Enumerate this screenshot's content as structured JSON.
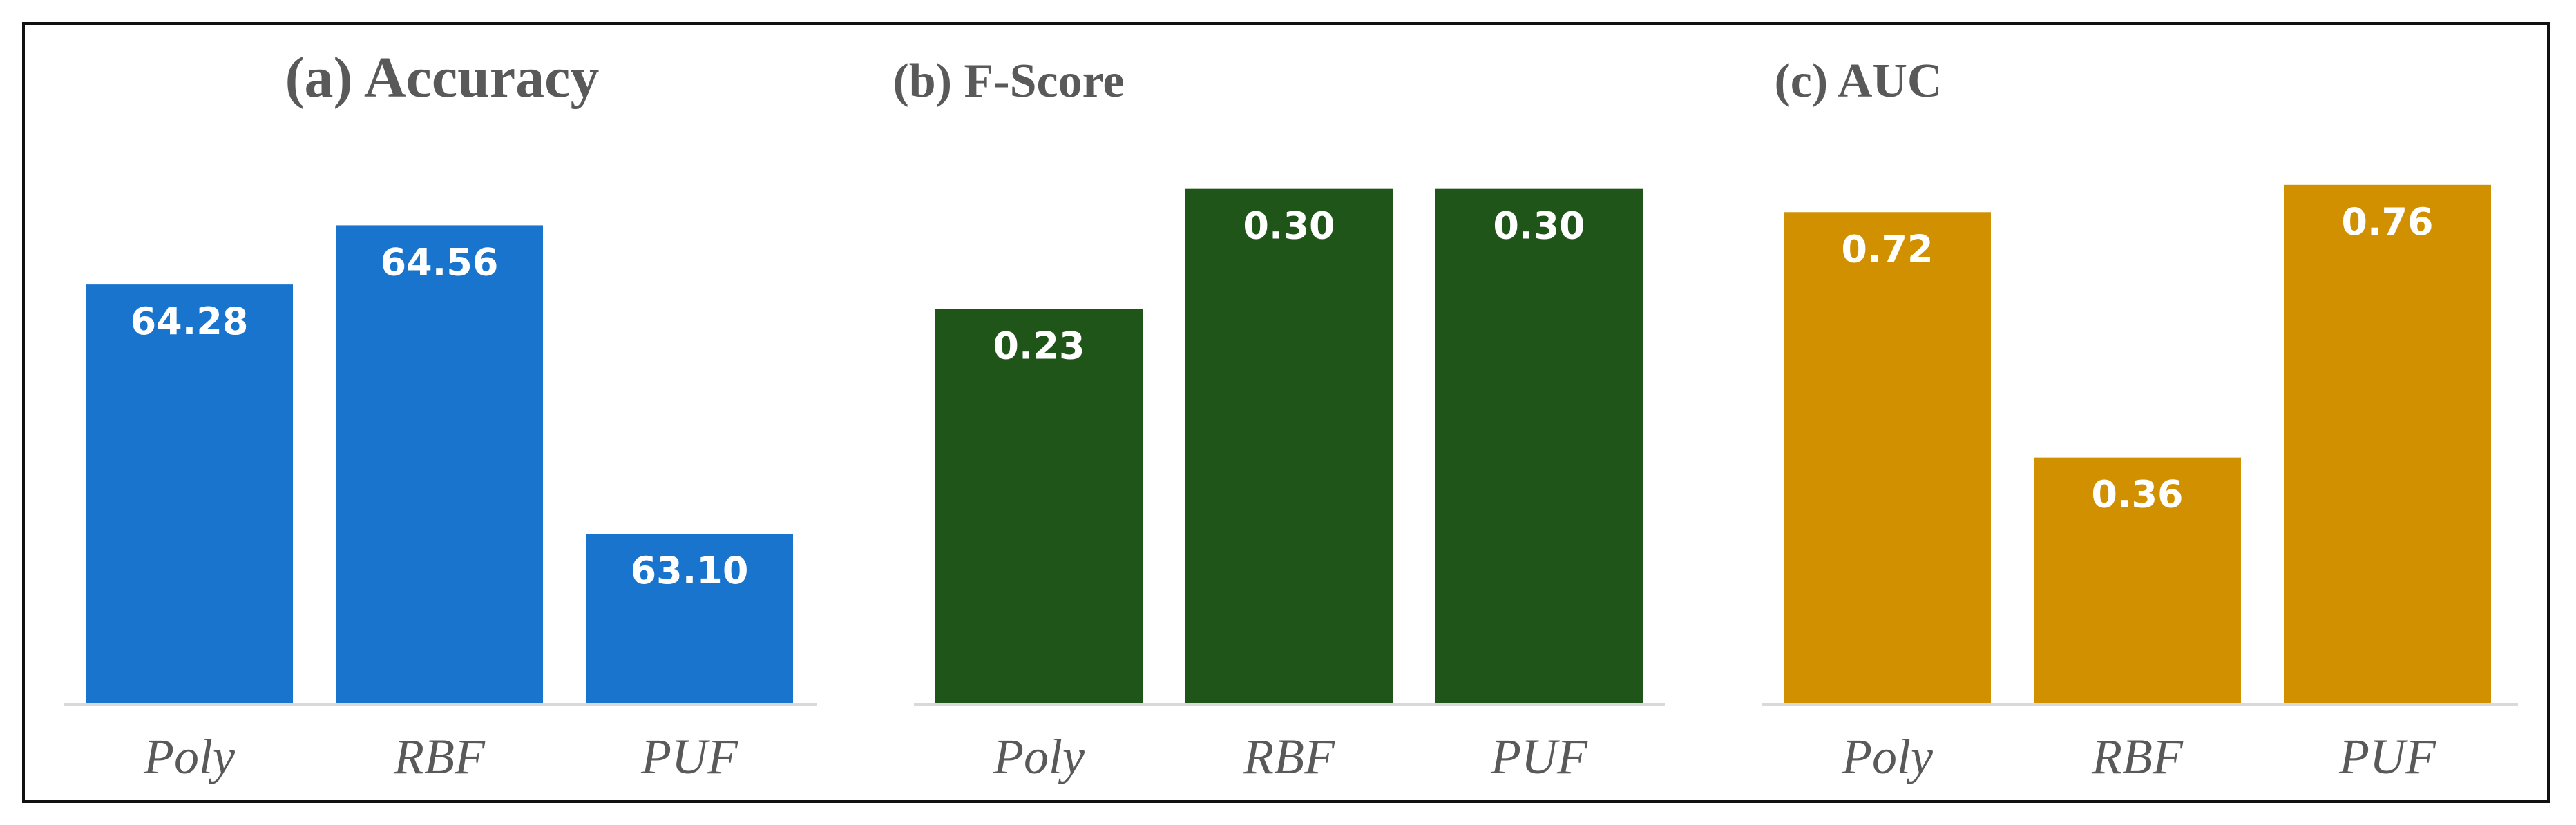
{
  "chart_data": [
    {
      "type": "bar",
      "title": "(a) Accuracy",
      "categories": [
        "Poly",
        "RBF",
        "PUF"
      ],
      "values": [
        64.28,
        64.56,
        63.1
      ],
      "value_labels": [
        "64.28",
        "64.56",
        "63.10"
      ],
      "ylim": [
        62.3,
        65.3
      ],
      "color": "#1874cd",
      "xlabel": "",
      "ylabel": "",
      "grid": false
    },
    {
      "type": "bar",
      "title": "(b) F-Score",
      "categories": [
        "Poly",
        "RBF",
        "PUF"
      ],
      "values": [
        0.23,
        0.3,
        0.3
      ],
      "value_labels": [
        "0.23",
        "0.30",
        "0.30"
      ],
      "ylim": [
        0.0,
        0.37
      ],
      "color": "#1f5519",
      "xlabel": "",
      "ylabel": "",
      "grid": false
    },
    {
      "type": "bar",
      "title": "(c) AUC",
      "categories": [
        "Poly",
        "RBF",
        "PUF"
      ],
      "values": [
        0.72,
        0.36,
        0.76
      ],
      "value_labels": [
        "0.72",
        "0.36",
        "0.76"
      ],
      "ylim": [
        0.0,
        0.93
      ],
      "color": "#d09000",
      "xlabel": "",
      "ylabel": "",
      "grid": false
    }
  ]
}
